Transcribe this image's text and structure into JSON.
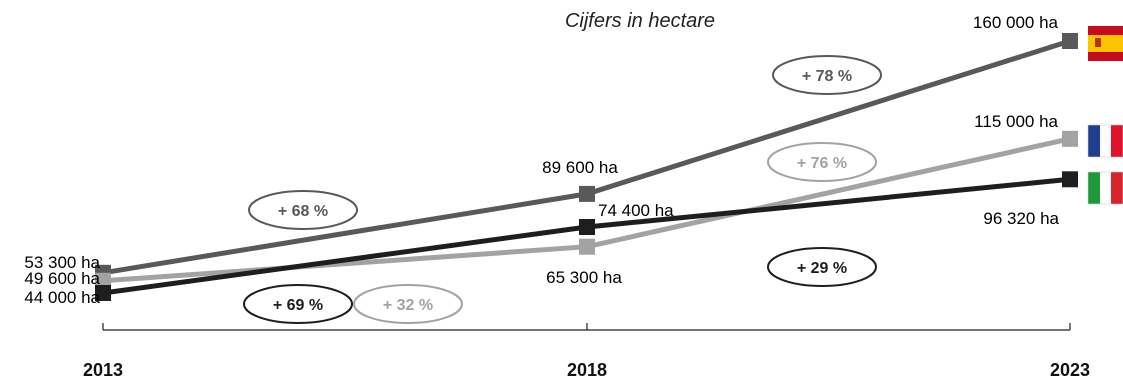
{
  "chart_data": {
    "type": "line",
    "subtitle": "Cijfers in hectare",
    "x": [
      "2013",
      "2018",
      "2023"
    ],
    "series": [
      {
        "country": "Spain",
        "color": "#595959",
        "icon": "spain-flag-icon",
        "values": [
          53300,
          89600,
          160000
        ],
        "labels": [
          "53 300 ha",
          "89 600 ha",
          "160 000 ha"
        ],
        "changes": [
          "+ 68 %",
          "+ 78 %"
        ]
      },
      {
        "country": "France",
        "color": "#a3a3a3",
        "icon": "france-flag-icon",
        "values": [
          49600,
          65300,
          115000
        ],
        "labels": [
          "49 600 ha",
          "65 300 ha",
          "115 000 ha"
        ],
        "changes": [
          "+ 32 %",
          "+ 76 %"
        ]
      },
      {
        "country": "Italy",
        "color": "#1e1e1e",
        "icon": "italy-flag-icon",
        "values": [
          44000,
          74400,
          96320
        ],
        "labels": [
          "44 000 ha",
          "74 400 ha",
          "96 320 ha"
        ],
        "changes": [
          "+ 69 %",
          "+ 29 %"
        ]
      }
    ],
    "ylim": [
      44000,
      160000
    ],
    "grid": false,
    "legend": "flags at right end of lines"
  }
}
